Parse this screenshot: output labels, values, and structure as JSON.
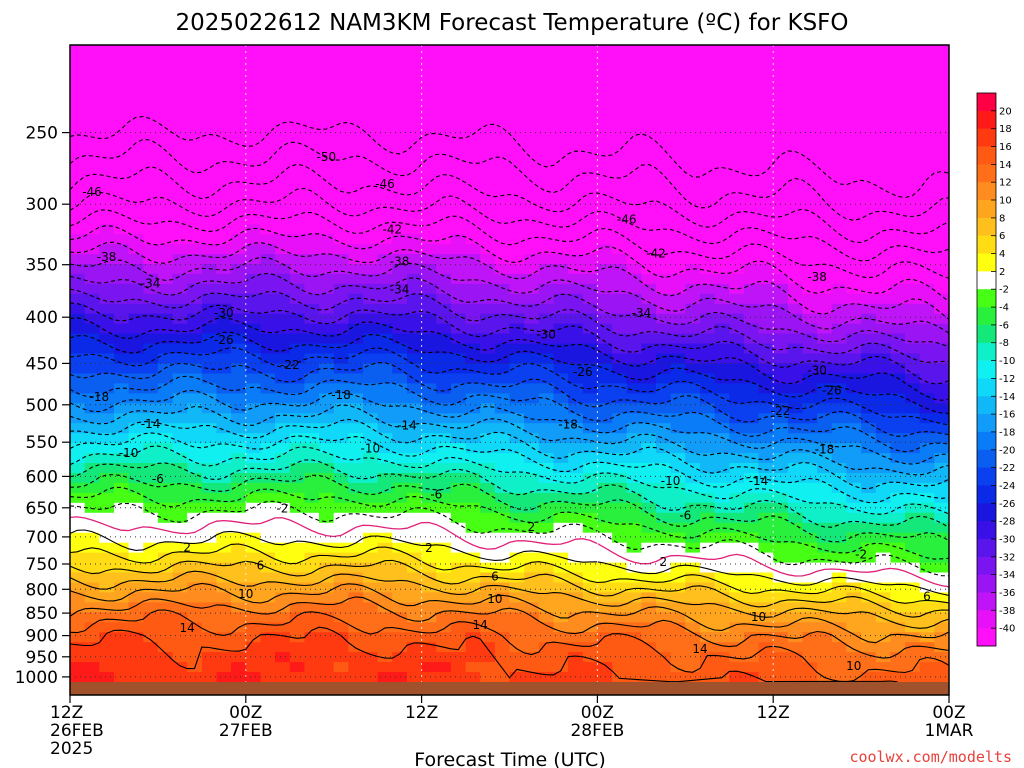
{
  "chart_data": {
    "type": "heatmap",
    "title": "2025022612 NAM3KM Forecast Temperature (ºC) for KSFO",
    "xlabel": "Forecast Time (UTC)",
    "ylabel": "",
    "credit": "coolwx.com/modelts",
    "credit_color": "#e8413c",
    "x_ticks": [
      {
        "hour": 0,
        "lines": [
          "12Z",
          "26FEB",
          "2025"
        ]
      },
      {
        "hour": 12,
        "lines": [
          "00Z",
          "27FEB"
        ]
      },
      {
        "hour": 24,
        "lines": [
          "12Z"
        ]
      },
      {
        "hour": 36,
        "lines": [
          "00Z",
          "28FEB"
        ]
      },
      {
        "hour": 48,
        "lines": [
          "12Z"
        ]
      },
      {
        "hour": 60,
        "lines": [
          "00Z",
          "1MAR"
        ]
      }
    ],
    "xlim": [
      0,
      60
    ],
    "y_ticks": [
      "250",
      "300",
      "350",
      "400",
      "450",
      "500",
      "550",
      "600",
      "650",
      "700",
      "750",
      "800",
      "850",
      "900",
      "950",
      "1000"
    ],
    "ylim": [
      200,
      1013
    ],
    "y_scale": "log",
    "grid": true,
    "ground_color": "#a0522d",
    "colorbar": {
      "labels": [
        "20",
        "18",
        "16",
        "14",
        "12",
        "10",
        "8",
        "6",
        "4",
        "2",
        "-2",
        "-4",
        "-6",
        "-8",
        "-10",
        "-12",
        "-14",
        "-16",
        "-18",
        "-20",
        "-22",
        "-24",
        "-26",
        "-28",
        "-30",
        "-32",
        "-34",
        "-36",
        "-38",
        "-40"
      ],
      "colors": [
        "#ff0044",
        "#ff1a1a",
        "#ff3a10",
        "#ff5a14",
        "#ff6e18",
        "#ff8c1e",
        "#ffa61e",
        "#ffc01e",
        "#ffdc14",
        "#ffff10",
        "#ffffff",
        "#46ff14",
        "#28f03c",
        "#14e87a",
        "#10f0c8",
        "#10f0f0",
        "#10d8f8",
        "#10b8f8",
        "#109cf8",
        "#0a7cf8",
        "#0a5ef0",
        "#0a40f0",
        "#0a2ae8",
        "#1a16e0",
        "#3a10e8",
        "#5a14ec",
        "#7a14f0",
        "#9a14f4",
        "#c014f8",
        "#e810f8",
        "#ff10f8"
      ]
    },
    "contour_labels": [
      {
        "text": "-50",
        "t": 17.5,
        "p": 266
      },
      {
        "text": "-46",
        "t": 1.5,
        "p": 291
      },
      {
        "text": "-46",
        "t": 21.5,
        "p": 285
      },
      {
        "text": "-46",
        "t": 38,
        "p": 312
      },
      {
        "text": "-42",
        "t": 22,
        "p": 320
      },
      {
        "text": "-42",
        "t": 40,
        "p": 340
      },
      {
        "text": "-38",
        "t": 2.5,
        "p": 343
      },
      {
        "text": "-38",
        "t": 22.5,
        "p": 347
      },
      {
        "text": "-38",
        "t": 51,
        "p": 361
      },
      {
        "text": "-34",
        "t": 5.5,
        "p": 367
      },
      {
        "text": "-34",
        "t": 22.5,
        "p": 373
      },
      {
        "text": "-34",
        "t": 39,
        "p": 396
      },
      {
        "text": "-30",
        "t": 10.5,
        "p": 396
      },
      {
        "text": "-30",
        "t": 32.5,
        "p": 418
      },
      {
        "text": "-30",
        "t": 51,
        "p": 458
      },
      {
        "text": "-26",
        "t": 10.5,
        "p": 424
      },
      {
        "text": "-26",
        "t": 35,
        "p": 460
      },
      {
        "text": "-26",
        "t": 52,
        "p": 482
      },
      {
        "text": "-22",
        "t": 15,
        "p": 452
      },
      {
        "text": "-22",
        "t": 48.5,
        "p": 508
      },
      {
        "text": "-18",
        "t": 2,
        "p": 490
      },
      {
        "text": "-18",
        "t": 18.5,
        "p": 488
      },
      {
        "text": "-18",
        "t": 34,
        "p": 526
      },
      {
        "text": "-18",
        "t": 51.5,
        "p": 560
      },
      {
        "text": "-14",
        "t": 5.5,
        "p": 525
      },
      {
        "text": "-14",
        "t": 23,
        "p": 527
      },
      {
        "text": "-14",
        "t": 47,
        "p": 607
      },
      {
        "text": "-10",
        "t": 4,
        "p": 565
      },
      {
        "text": "-10",
        "t": 20.5,
        "p": 559
      },
      {
        "text": "-10",
        "t": 41,
        "p": 607
      },
      {
        "text": "-6",
        "t": 6,
        "p": 604
      },
      {
        "text": "-6",
        "t": 25,
        "p": 628
      },
      {
        "text": "-6",
        "t": 42,
        "p": 663
      },
      {
        "text": "-2",
        "t": 14.5,
        "p": 651
      },
      {
        "text": "-2",
        "t": 54,
        "p": 732
      },
      {
        "text": "2",
        "t": 31.5,
        "p": 683
      },
      {
        "text": "2",
        "t": 8,
        "p": 719
      },
      {
        "text": "2",
        "t": 24.5,
        "p": 720
      },
      {
        "text": "2",
        "t": 40.5,
        "p": 746
      },
      {
        "text": "6",
        "t": 13,
        "p": 753
      },
      {
        "text": "6",
        "t": 29,
        "p": 774
      },
      {
        "text": "6",
        "t": 58.5,
        "p": 815
      },
      {
        "text": "10",
        "t": 12,
        "p": 810
      },
      {
        "text": "10",
        "t": 29,
        "p": 820
      },
      {
        "text": "10",
        "t": 47,
        "p": 858
      },
      {
        "text": "10",
        "t": 53.5,
        "p": 973
      },
      {
        "text": "14",
        "t": 8,
        "p": 883
      },
      {
        "text": "14",
        "t": 28,
        "p": 876
      },
      {
        "text": "14",
        "t": 43,
        "p": 931
      }
    ]
  }
}
